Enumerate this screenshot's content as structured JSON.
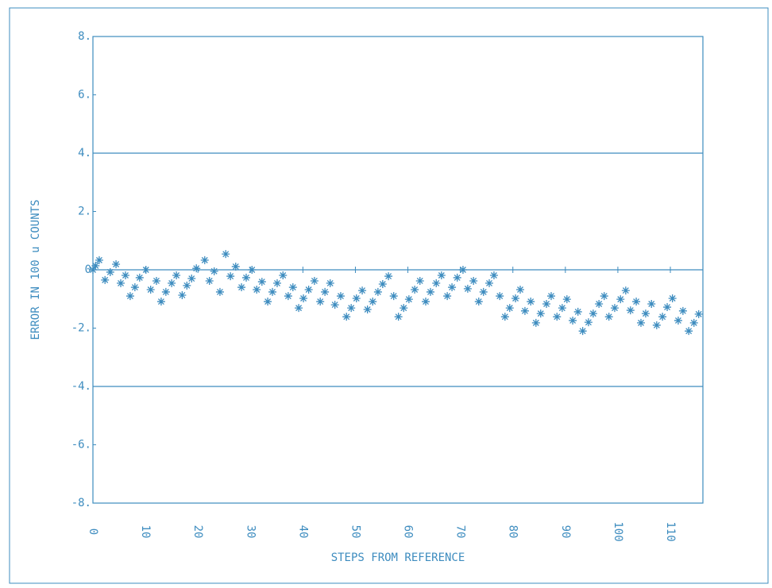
{
  "chart_data": {
    "type": "scatter",
    "xlabel": "STEPS FROM REFERENCE",
    "ylabel": "ERROR IN 100 u COUNTS",
    "color": "#3d8cbf",
    "marker": "asterisk",
    "xlim": [
      0,
      116.2
    ],
    "ylim": [
      -8,
      8
    ],
    "xticks": [
      0,
      10,
      20,
      30,
      40,
      50,
      60,
      70,
      80,
      90,
      100,
      110
    ],
    "yticks": [
      {
        "value": 8,
        "label": "8."
      },
      {
        "value": 6,
        "label": "6."
      },
      {
        "value": 4,
        "label": "4."
      },
      {
        "value": 2,
        "label": "2."
      },
      0,
      {
        "value": -2,
        "label": "-2."
      },
      {
        "value": -4,
        "label": "-4."
      },
      {
        "value": -6,
        "label": "-6."
      },
      {
        "value": -8,
        "label": "-8."
      }
    ],
    "reference_lines": [
      4,
      0,
      -4
    ],
    "x": [
      0.0,
      0.5,
      1.2,
      2.3,
      3.3,
      4.4,
      5.3,
      6.2,
      7.1,
      8.0,
      8.9,
      10.1,
      11.0,
      12.1,
      13.0,
      13.9,
      15.0,
      15.9,
      17.0,
      17.9,
      18.8,
      19.7,
      21.3,
      22.2,
      23.1,
      24.2,
      25.3,
      26.2,
      27.2,
      28.3,
      29.2,
      30.3,
      31.2,
      32.2,
      33.3,
      34.2,
      35.1,
      36.2,
      37.2,
      38.1,
      39.2,
      40.1,
      41.1,
      42.2,
      43.3,
      44.2,
      45.2,
      46.1,
      47.2,
      48.3,
      49.2,
      50.2,
      51.3,
      52.3,
      53.3,
      54.3,
      55.2,
      56.3,
      57.3,
      58.2,
      59.2,
      60.2,
      61.3,
      62.3,
      63.4,
      64.3,
      65.4,
      66.4,
      67.5,
      68.4,
      69.4,
      70.5,
      71.4,
      72.5,
      73.5,
      74.4,
      75.5,
      76.4,
      77.5,
      78.5,
      79.4,
      80.5,
      81.4,
      82.3,
      83.4,
      84.4,
      85.3,
      86.4,
      87.3,
      88.4,
      89.4,
      90.3,
      91.4,
      92.4,
      93.3,
      94.4,
      95.3,
      96.4,
      97.4,
      98.3,
      99.4,
      100.5,
      101.5,
      102.4,
      103.5,
      104.4,
      105.3,
      106.4,
      107.4,
      108.5,
      109.4,
      110.4,
      111.5,
      112.4,
      113.5,
      114.5,
      115.4
    ],
    "values": [
      0.0,
      0.14,
      0.33,
      -0.35,
      -0.08,
      0.19,
      -0.46,
      -0.19,
      -0.9,
      -0.6,
      -0.27,
      0.0,
      -0.68,
      -0.38,
      -1.09,
      -0.76,
      -0.46,
      -0.19,
      -0.87,
      -0.54,
      -0.3,
      0.05,
      0.33,
      -0.38,
      -0.05,
      -0.76,
      0.54,
      -0.22,
      0.11,
      -0.6,
      -0.27,
      0.0,
      -0.68,
      -0.41,
      -1.09,
      -0.76,
      -0.46,
      -0.19,
      -0.9,
      -0.6,
      -1.31,
      -0.98,
      -0.68,
      -0.38,
      -1.09,
      -0.76,
      -0.46,
      -1.2,
      -0.9,
      -1.61,
      -1.31,
      -0.98,
      -0.71,
      -1.36,
      -1.09,
      -0.76,
      -0.49,
      -0.22,
      -0.9,
      -1.61,
      -1.31,
      -1.01,
      -0.68,
      -0.38,
      -1.09,
      -0.76,
      -0.46,
      -0.19,
      -0.9,
      -0.6,
      -0.27,
      0.0,
      -0.65,
      -0.38,
      -1.09,
      -0.76,
      -0.46,
      -0.19,
      -0.9,
      -1.61,
      -1.31,
      -0.98,
      -0.68,
      -1.41,
      -1.09,
      -1.82,
      -1.5,
      -1.17,
      -0.9,
      -1.61,
      -1.31,
      -1.01,
      -1.74,
      -1.44,
      -2.1,
      -1.8,
      -1.5,
      -1.17,
      -0.9,
      -1.61,
      -1.31,
      -1.01,
      -0.71,
      -1.39,
      -1.09,
      -1.82,
      -1.5,
      -1.17,
      -1.9,
      -1.61,
      -1.28,
      -0.98,
      -1.74,
      -1.41,
      -2.1,
      -1.82,
      -1.52
    ]
  }
}
